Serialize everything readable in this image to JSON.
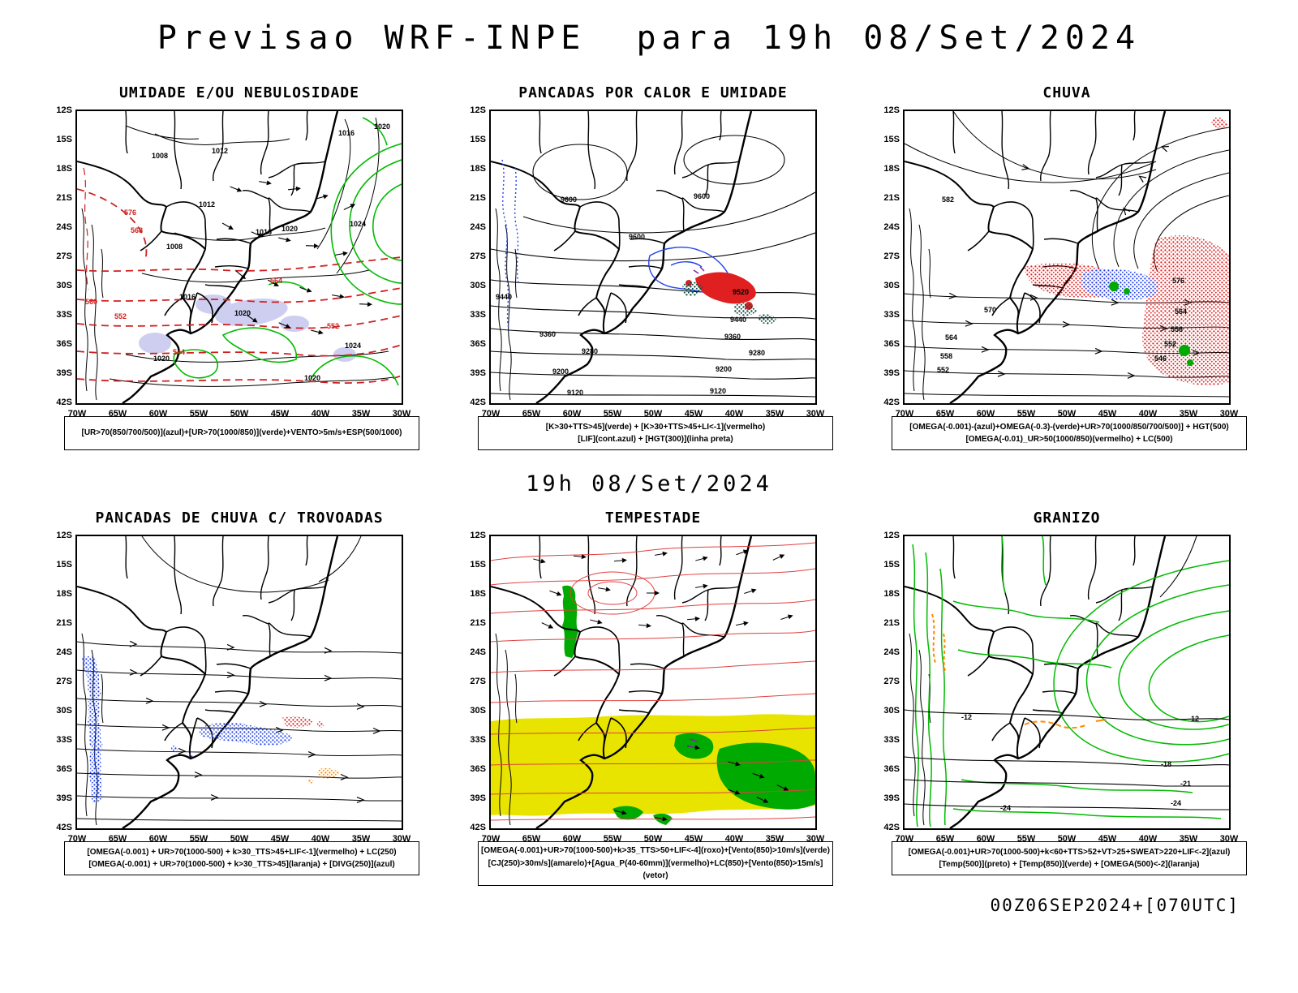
{
  "page": {
    "title": "Previsao WRF-INPE  para 19h 08/Set/2024",
    "mid_caption": "19h 08/Set/2024",
    "footer": "00Z06SEP2024+[070UTC]"
  },
  "axes": {
    "lat": [
      "12S",
      "15S",
      "18S",
      "21S",
      "24S",
      "27S",
      "30S",
      "33S",
      "36S",
      "39S",
      "42S"
    ],
    "lon": [
      "70W",
      "65W",
      "60W",
      "55W",
      "50W",
      "45W",
      "40W",
      "35W",
      "30W"
    ]
  },
  "colors": {
    "map_outline": "#000000",
    "humidity_green": "#00bb00",
    "thickness_red": "#e02020",
    "moisture_blue": "#2244ee",
    "jet_yellow": "#e8e400",
    "instability_orange": "#ff8800",
    "severe_purple": "#8822aa",
    "cloud_lavender": "#c6c6ef",
    "dark_teal": "#0a4a42"
  },
  "panels": [
    {
      "title": "UMIDADE E/OU NEBULOSIDADE",
      "legend": [
        "[UR>70(850/700/500)](azul)+[UR>70(1000/850)](verde)+VENTO>5m/s+ESP(500/1000)"
      ],
      "map_labels": [
        "1008",
        "1012",
        "1016",
        "1020",
        "1012",
        "1008",
        "1016",
        "1020",
        "1024",
        "1016",
        "1020",
        "1020",
        "1020",
        "1024",
        "576",
        "568",
        "560",
        "552",
        "544",
        "564",
        "552"
      ]
    },
    {
      "title": "PANCADAS POR CALOR E UMIDADE",
      "legend": [
        "[K>30+TTS>45](verde) + [K>30+TTS>45+LI<-1](vermelho)",
        "[LIF](cont.azul) + [HGT(300)](linha preta)"
      ],
      "map_labels": [
        "9600",
        "9600",
        "9600",
        "9520",
        "9440",
        "9360",
        "9280",
        "9200",
        "9120",
        "9440",
        "9360",
        "9280",
        "9200",
        "9120"
      ]
    },
    {
      "title": "CHUVA",
      "legend": [
        "[OMEGA(-0.001)-(azul)+OMEGA(-0.3)-(verde)+UR>70(1000/850/700/500)] + HGT(500)",
        "[OMEGA(-0.01)_UR>50(1000/850)(vermelho) + LC(500)"
      ],
      "map_labels": [
        "582",
        "576",
        "570",
        "564",
        "558",
        "552",
        "564",
        "558",
        "552",
        "546"
      ]
    },
    {
      "title": "PANCADAS DE CHUVA C/ TROVOADAS",
      "legend": [
        "[OMEGA(-0.001) + UR>70(1000-500) + k>30_TTS>45+LIF<-1](vermelho) + LC(250)",
        "[OMEGA(-0.001) + UR>70(1000-500) + k>30_TTS>45](laranja) + [DIVG(250)](azul)"
      ],
      "map_labels": []
    },
    {
      "title": "TEMPESTADE",
      "legend": [
        "[OMEGA(-0.001)+UR>70(1000-500)+k>35_TTS>50+LIF<-4](roxo)+[Vento(850)>10m/s](verde)",
        "[CJ(250)>30m/s](amarelo)+[Agua_P(40-60mm)](vermelho)+LC(850)+[Vento(850)>15m/s](vetor)"
      ],
      "map_labels": []
    },
    {
      "title": "GRANIZO",
      "legend": [
        "[OMEGA(-0.001)+UR>70(1000-500)+k<60+TTS>52+VT>25+SWEAT>220+LIF<-2](azul)",
        "[Temp(500)](preto) + [Temp(850)](verde) + [OMEGA(500)<-2](laranja)"
      ],
      "map_labels": [
        "-12",
        "-12",
        "-18",
        "-21",
        "-24",
        "-24"
      ]
    }
  ]
}
